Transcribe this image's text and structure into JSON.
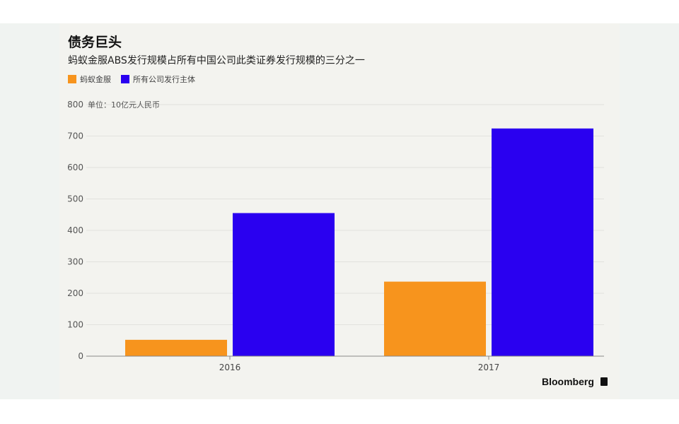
{
  "chart_data": {
    "type": "bar",
    "title": "债务巨头",
    "subtitle": "蚂蚁金服ABS发行规模占所有中国公司此类证券发行规模的三分之一",
    "unit_label": "单位：10亿元人民币",
    "categories": [
      "2016",
      "2017"
    ],
    "series": [
      {
        "name": "蚂蚁金服",
        "color": "#f7941d",
        "values": [
          52,
          237
        ]
      },
      {
        "name": "所有公司发行主体",
        "color": "#2a00f0",
        "values": [
          455,
          724
        ]
      }
    ],
    "ylim": [
      0,
      800
    ],
    "yticks": [
      0,
      100,
      200,
      300,
      400,
      500,
      600,
      700,
      800
    ],
    "grid": true,
    "legend_position": "top-left",
    "source": "Bloomberg"
  }
}
